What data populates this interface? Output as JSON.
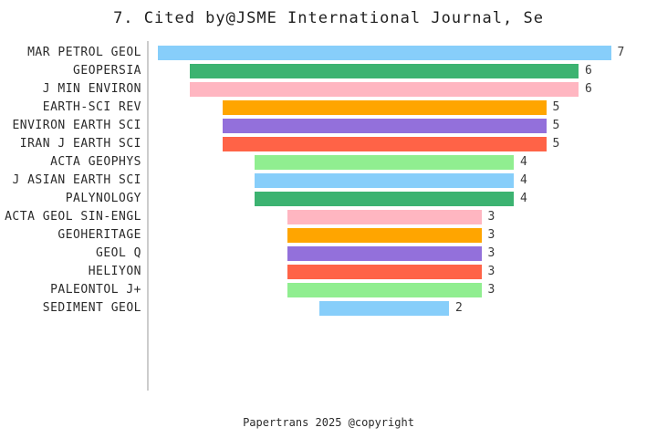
{
  "title": "7. Cited by@JSME International Journal, Se",
  "footer": "Papertrans 2025 @copyright",
  "chart_data": {
    "type": "bar",
    "orientation": "horizontal-centered-funnel",
    "title": "7. Cited by@JSME International Journal, Se",
    "categories": [
      "MAR PETROL GEOL",
      "GEOPERSIA",
      "J MIN ENVIRON",
      "EARTH-SCI REV",
      "ENVIRON EARTH SCI",
      "IRAN J EARTH SCI",
      "ACTA GEOPHYS",
      "J ASIAN EARTH SCI",
      "PALYNOLOGY",
      "ACTA GEOL SIN-ENGL",
      "GEOHERITAGE",
      "GEOL Q",
      "HELIYON",
      "PALEONTOL J+",
      "SEDIMENT GEOL"
    ],
    "values": [
      7,
      6,
      6,
      5,
      5,
      5,
      4,
      4,
      4,
      3,
      3,
      3,
      3,
      3,
      2
    ],
    "bar_colors": [
      "#87CEFA",
      "#3CB371",
      "#FFB6C1",
      "#FFA500",
      "#9370DB",
      "#FF6347",
      "#90EE90",
      "#87CEFA",
      "#3CB371",
      "#FFB6C1",
      "#FFA500",
      "#9370DB",
      "#FF6347",
      "#90EE90",
      "#87CEFA"
    ],
    "value_labels_shown": true,
    "value_range_max": 7,
    "grid": false,
    "legend": false,
    "axis_line_color": "#cccccc",
    "xlabel": "",
    "ylabel": ""
  }
}
